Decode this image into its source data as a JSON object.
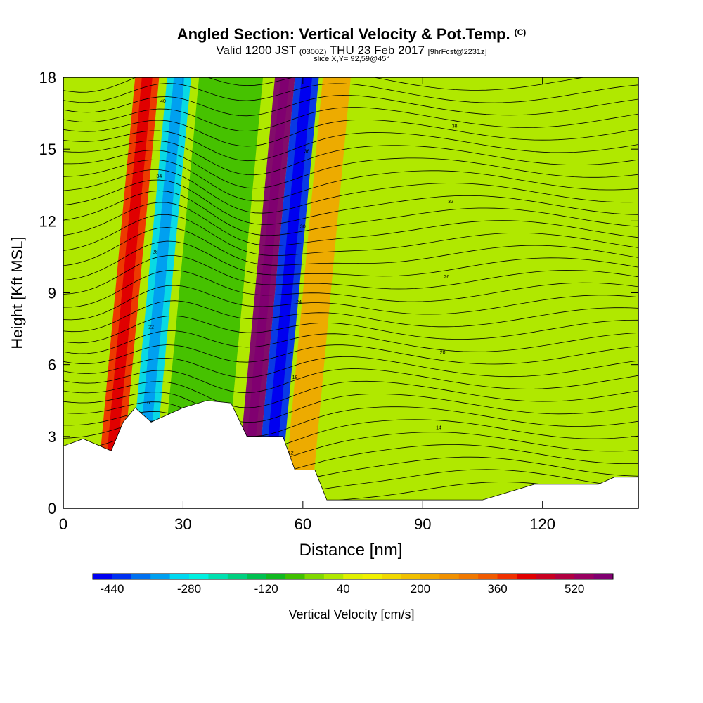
{
  "title": {
    "main": "Angled Section: Vertical Velocity & Pot.Temp.",
    "unit": "(C)",
    "valid_prefix": "Valid 1200 JST",
    "valid_utc": "(0300Z)",
    "valid_date": "THU 23 Feb 2017",
    "forecast": "[9hrFcst@2231z]",
    "slice": "slice X,Y= 92,59@45°"
  },
  "chart_data": {
    "type": "heatmap",
    "xlabel": "Distance [nm]",
    "ylabel": "Height [Kft MSL]",
    "xlim": [
      0,
      144
    ],
    "ylim": [
      0,
      18
    ],
    "x_ticks": [
      0,
      30,
      60,
      90,
      120
    ],
    "y_ticks": [
      0,
      3,
      6,
      9,
      12,
      15,
      18
    ],
    "colorbar": {
      "label": "Vertical Velocity [cm/s]",
      "tick_labels": [
        -440,
        -280,
        -120,
        40,
        200,
        360,
        520
      ],
      "min": -480,
      "max": 600,
      "step": 40,
      "colors": [
        "#0000f0",
        "#0030f0",
        "#0070f0",
        "#00a0f0",
        "#00d8f0",
        "#00f0e0",
        "#00e0b0",
        "#00d080",
        "#00c050",
        "#10b820",
        "#40c000",
        "#80d800",
        "#b0e800",
        "#e0f000",
        "#f0f000",
        "#f0d800",
        "#f0c000",
        "#f0a800",
        "#f09000",
        "#f07800",
        "#f05a00",
        "#f03000",
        "#e00000",
        "#c80020",
        "#b00040",
        "#980060",
        "#800070"
      ]
    },
    "velocity_bands": [
      {
        "x": [
          8,
          14
        ],
        "value": 360
      },
      {
        "x": [
          16,
          22
        ],
        "value": -300
      },
      {
        "x": [
          24,
          40
        ],
        "value": -80
      },
      {
        "x": [
          43,
          48
        ],
        "value": 560
      },
      {
        "x": [
          48,
          54
        ],
        "value": -440
      },
      {
        "x": [
          55,
          62
        ],
        "value": 200
      },
      {
        "x": [
          62,
          144
        ],
        "value": 20
      }
    ],
    "terrain_kft": [
      [
        0,
        2.6
      ],
      [
        5,
        2.9
      ],
      [
        12,
        2.4
      ],
      [
        15,
        3.6
      ],
      [
        18,
        4.2
      ],
      [
        22,
        3.6
      ],
      [
        30,
        4.2
      ],
      [
        36,
        4.5
      ],
      [
        42,
        4.4
      ],
      [
        46,
        3.0
      ],
      [
        55,
        3.0
      ],
      [
        58,
        1.6
      ],
      [
        63,
        1.6
      ],
      [
        66,
        0.35
      ],
      [
        90,
        0.35
      ],
      [
        105,
        0.35
      ],
      [
        118,
        1.0
      ],
      [
        134,
        1.0
      ],
      [
        138,
        1.3
      ],
      [
        144,
        1.3
      ]
    ],
    "pot_temp_contour_labels": [
      10,
      12,
      14,
      16,
      18,
      20,
      22,
      24,
      26,
      28,
      30,
      32,
      34,
      36,
      38,
      40
    ]
  }
}
